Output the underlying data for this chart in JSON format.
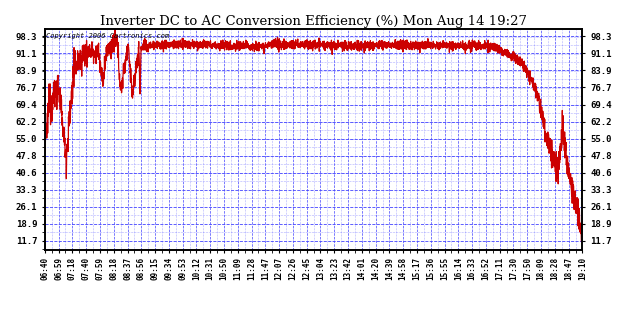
{
  "title": "Inverter DC to AC Conversion Efficiency (%) Mon Aug 14 19:27",
  "copyright_text": "Copyright 2006 Cartronics.com",
  "background_color": "#ffffff",
  "fig_bg_color": "#ffffff",
  "line_color": "#cc0000",
  "grid_color": "#4444ff",
  "text_color": "#000000",
  "title_color": "#000000",
  "y_ticks": [
    11.7,
    18.9,
    26.1,
    33.3,
    40.6,
    47.8,
    55.0,
    62.2,
    69.4,
    76.7,
    83.9,
    91.1,
    98.3
  ],
  "y_min": 8.0,
  "y_max": 101.5,
  "x_labels": [
    "06:40",
    "06:59",
    "07:18",
    "07:40",
    "07:59",
    "08:18",
    "08:37",
    "08:56",
    "09:15",
    "09:34",
    "09:53",
    "10:12",
    "10:31",
    "10:50",
    "11:09",
    "11:28",
    "11:47",
    "12:07",
    "12:26",
    "12:45",
    "13:04",
    "13:23",
    "13:42",
    "14:01",
    "14:20",
    "14:39",
    "14:58",
    "15:17",
    "15:36",
    "15:55",
    "16:14",
    "16:33",
    "16:52",
    "17:11",
    "17:30",
    "17:50",
    "18:09",
    "18:28",
    "18:47",
    "19:10"
  ]
}
